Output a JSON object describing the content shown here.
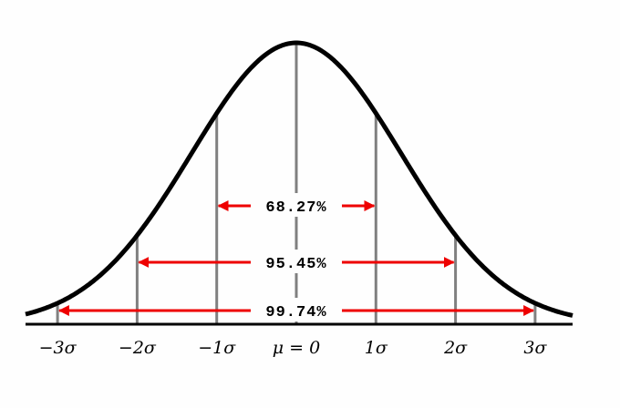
{
  "axis_labels": [
    "−3σ",
    "−2σ",
    "−1σ",
    "μ = 0",
    "1σ",
    "2σ",
    "3σ"
  ],
  "intervals": [
    {
      "label": "68.27%"
    },
    {
      "label": "95.45%"
    },
    {
      "label": "99.74%"
    }
  ]
}
